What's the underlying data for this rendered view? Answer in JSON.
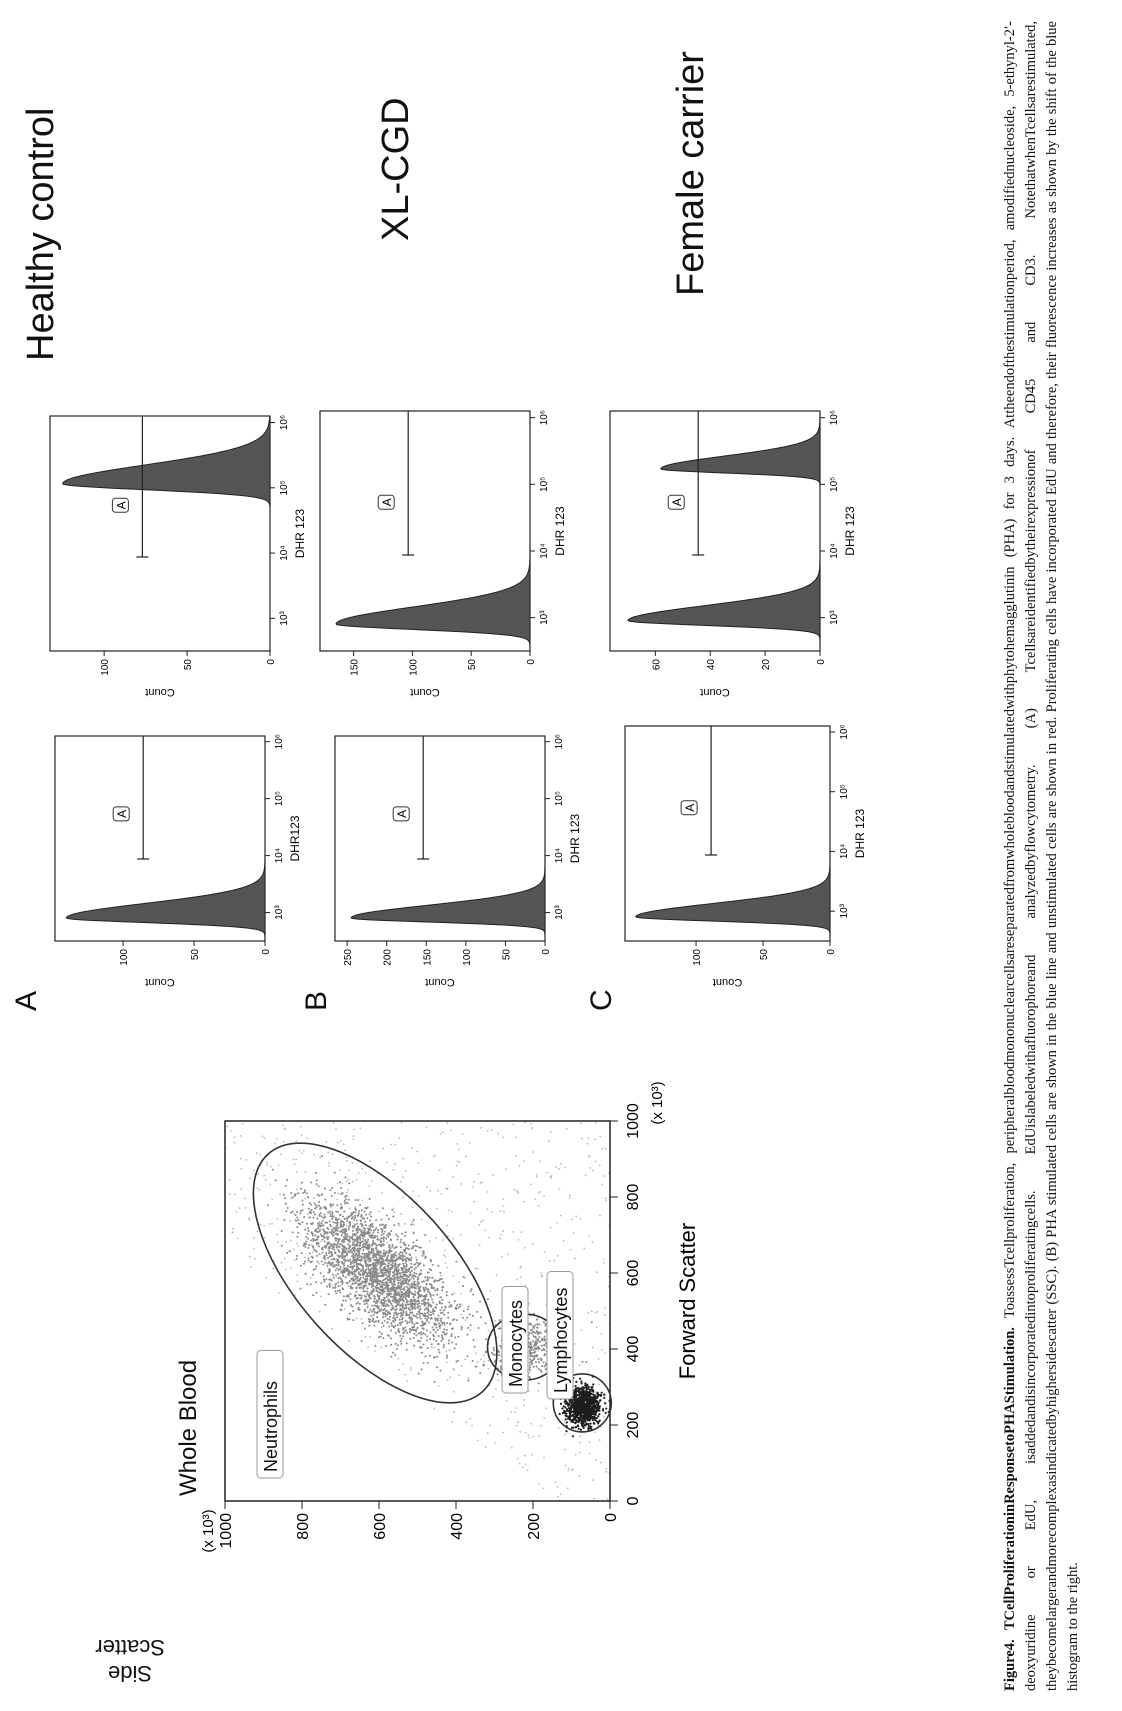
{
  "panel_labels": [
    "A",
    "B",
    "C"
  ],
  "scatter": {
    "title": "Whole Blood",
    "x_axis_label": "Forward Scatter",
    "y_axis_label": "Side Scatter",
    "x_unit": "(x 10³)",
    "y_unit": "(x 10³)",
    "x_ticks": [
      "0",
      "200",
      "400",
      "600",
      "800",
      "1000"
    ],
    "y_ticks": [
      "0",
      "200",
      "400",
      "600",
      "800",
      "1000"
    ],
    "gates": [
      "Neutrophils",
      "Monocytes",
      "Lymphocytes"
    ]
  },
  "samples": [
    "Healthy control",
    "XL-CGD",
    "Female carrier"
  ],
  "chart_data": [
    {
      "type": "area",
      "panel": "A",
      "position": "left",
      "xlabel": "DHR123",
      "ylabel": "Count",
      "xscale": "log",
      "x_ticks": [
        "10³",
        "10⁴",
        "10⁵",
        "10⁶"
      ],
      "y_ticks": [
        "0",
        "50",
        "100"
      ],
      "ylim": [
        0,
        145
      ],
      "gate": "A",
      "peaks": [
        {
          "x": 800,
          "y": 140,
          "width": 0.08
        }
      ]
    },
    {
      "type": "area",
      "panel": "A",
      "position": "right",
      "xlabel": "DHR 123",
      "ylabel": "Count",
      "xscale": "log",
      "x_ticks": [
        "10³",
        "10⁴",
        "10⁵",
        "10⁶"
      ],
      "y_ticks": [
        "0",
        "50",
        "100"
      ],
      "ylim": [
        0,
        130
      ],
      "gate": "A",
      "peaks": [
        {
          "x": 115000,
          "y": 125,
          "width": 0.09
        }
      ]
    },
    {
      "type": "area",
      "panel": "B",
      "position": "left",
      "xlabel": "DHR 123",
      "ylabel": "Count",
      "xscale": "log",
      "x_ticks": [
        "10³",
        "10⁴",
        "10⁵",
        "10⁶"
      ],
      "y_ticks": [
        "0",
        "50",
        "100",
        "150",
        "200",
        "250"
      ],
      "ylim": [
        0,
        260
      ],
      "gate": "A",
      "peaks": [
        {
          "x": 800,
          "y": 245,
          "width": 0.07
        }
      ]
    },
    {
      "type": "area",
      "panel": "B",
      "position": "right",
      "xlabel": "DHR 123",
      "ylabel": "Count",
      "xscale": "log",
      "x_ticks": [
        "10³",
        "10⁴",
        "10⁵",
        "10⁶"
      ],
      "y_ticks": [
        "0",
        "50",
        "100",
        "150"
      ],
      "ylim": [
        0,
        175
      ],
      "gate": "A",
      "peaks": [
        {
          "x": 800,
          "y": 165,
          "width": 0.08
        }
      ]
    },
    {
      "type": "area",
      "panel": "C",
      "position": "left",
      "xlabel": "DHR 123",
      "ylabel": "Count",
      "xscale": "log",
      "x_ticks": [
        "10³",
        "10⁴",
        "10⁵",
        "10⁶"
      ],
      "y_ticks": [
        "0",
        "50",
        "100"
      ],
      "ylim": [
        0,
        150
      ],
      "gate": "A",
      "peaks": [
        {
          "x": 800,
          "y": 145,
          "width": 0.07
        }
      ]
    },
    {
      "type": "area",
      "panel": "C",
      "position": "right",
      "xlabel": "DHR 123",
      "ylabel": "Count",
      "xscale": "log",
      "x_ticks": [
        "10³",
        "10⁴",
        "10⁵",
        "10⁶"
      ],
      "y_ticks": [
        "0",
        "20",
        "40",
        "60"
      ],
      "ylim": [
        0,
        75
      ],
      "gate": "A",
      "peaks": [
        {
          "x": 900,
          "y": 70,
          "width": 0.07
        },
        {
          "x": 170000,
          "y": 58,
          "width": 0.06
        }
      ]
    }
  ],
  "caption": {
    "label": "Figure4.",
    "heading": "TCellProliferationinResponsetoPHAStimulation.",
    "body": "ToassessTcellproliferation, peripheralbloodmononuclearcellsareseparatedfromwholebloodandstimulatedwithphytohemagglutinin (PHA) for 3 days. Attheendofthestimulationperiod, amodifiednucleoside, 5-ethynyl-2′-deoxyuridine or EdU, isaddedandisincorporatedintoproliferatingcells. EdUislabeledwithafluorophoreand analyzedbyflowcytometry. (A) Tcellsareidentifiedbytheirexpressionof CD45 and CD3. NotethatwhenTcellsarestimulated, theybecomelargerandmorecomplexasindicatedbyhighersidescatter (SSC). (B) PHA stimulated cells are shown in the blue line and unstimulated cells are shown in red. Proliferating cells have incorporated EdU and therefore, their fluorescence increases as shown by the shift of the blue histogram to the right."
  }
}
